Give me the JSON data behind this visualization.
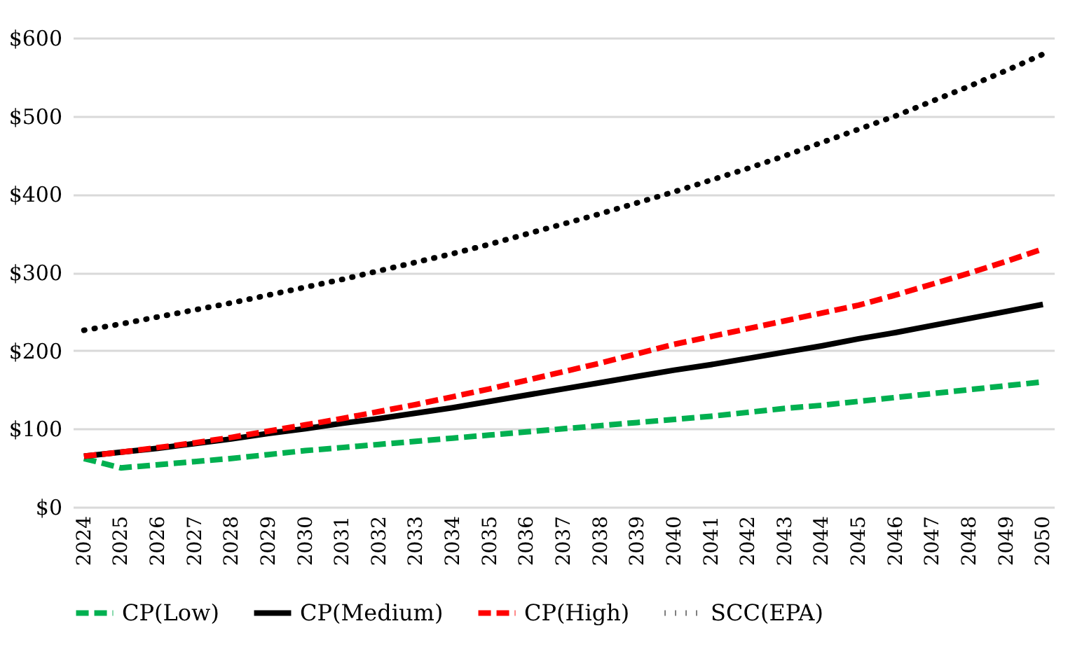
{
  "chart_data": {
    "type": "line",
    "categories": [
      "2024",
      "2025",
      "2026",
      "2027",
      "2028",
      "2029",
      "2030",
      "2031",
      "2032",
      "2033",
      "2034",
      "2035",
      "2036",
      "2037",
      "2038",
      "2039",
      "2040",
      "2041",
      "2042",
      "2043",
      "2044",
      "2045",
      "2046",
      "2047",
      "2048",
      "2049",
      "2050"
    ],
    "series": [
      {
        "name": "CP(Low)",
        "color": "#00b050",
        "line_style": "dashed",
        "values": [
          62,
          50,
          54,
          58,
          62,
          67,
          72,
          76,
          80,
          84,
          88,
          92,
          96,
          100,
          104,
          108,
          112,
          116,
          121,
          126,
          130,
          135,
          140,
          145,
          150,
          155,
          160
        ]
      },
      {
        "name": "CP(Medium)",
        "color": "#000000",
        "line_style": "solid",
        "values": [
          65,
          70,
          75,
          81,
          87,
          94,
          100,
          107,
          113,
          120,
          127,
          135,
          143,
          151,
          159,
          167,
          175,
          182,
          190,
          198,
          206,
          215,
          223,
          232,
          241,
          250,
          259
        ]
      },
      {
        "name": "CP(High)",
        "color": "#ff0000",
        "line_style": "dashed",
        "values": [
          65,
          70,
          76,
          82,
          89,
          97,
          105,
          113,
          122,
          131,
          141,
          151,
          162,
          173,
          184,
          196,
          208,
          218,
          228,
          238,
          248,
          258,
          271,
          285,
          299,
          314,
          330
        ]
      },
      {
        "name": "SCC(EPA)",
        "color": "#000000",
        "line_style": "dotted",
        "values": [
          226,
          234,
          243,
          252,
          261,
          271,
          281,
          291,
          302,
          313,
          324,
          336,
          349,
          362,
          375,
          389,
          403,
          418,
          433,
          449,
          466,
          483,
          500,
          519,
          538,
          558,
          579
        ]
      }
    ],
    "ylim": [
      0,
      600
    ],
    "yticks": [
      {
        "value": 0,
        "label": "$0"
      },
      {
        "value": 100,
        "label": "$100"
      },
      {
        "value": 200,
        "label": "$200"
      },
      {
        "value": 300,
        "label": "$300"
      },
      {
        "value": 400,
        "label": "$400"
      },
      {
        "value": 500,
        "label": "$500"
      },
      {
        "value": 600,
        "label": "$600"
      }
    ],
    "grid": "y",
    "legend": "bottom",
    "marker": "none"
  }
}
